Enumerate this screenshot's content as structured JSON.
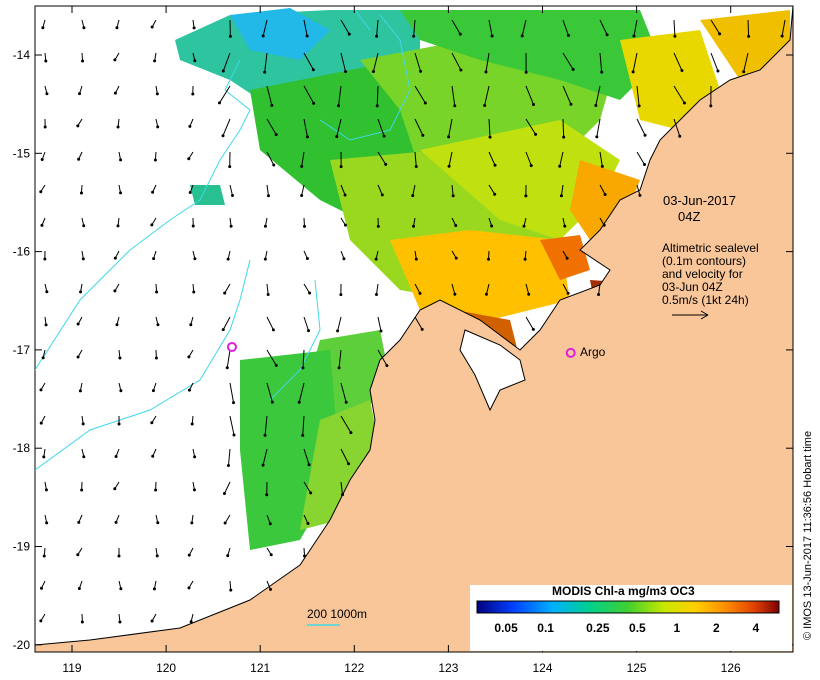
{
  "map": {
    "title_date": "03-Jun-2017",
    "title_time": "04Z",
    "altimetry_note": [
      "Altimetric sealevel",
      "(0.1m contours)",
      "and velocity for",
      "03-Jun 04Z",
      "0.5m/s (1kt 24h)"
    ],
    "argo_label": "Argo",
    "bathymetry_label": "200  1000m",
    "credit": "© IMOS 13-Jun-2017 11:36:56 Hobart time",
    "x_ticks": [
      "119",
      "120",
      "121",
      "122",
      "123",
      "124",
      "125",
      "126"
    ],
    "y_ticks": [
      "-14",
      "-15",
      "-16",
      "-17",
      "-18",
      "-19",
      "-20"
    ],
    "colorbar": {
      "label": "MODIS Chl-a mg/m3 OC3",
      "ticks": [
        "0.05",
        "0.1",
        "0.25",
        "0.5",
        "1",
        "2",
        "4"
      ]
    },
    "colors": {
      "land": "#f9c69a",
      "cloud": "#ffffff",
      "contour": "#40d8e8",
      "argo": "#e020e0"
    },
    "argo_floats": [
      {
        "lon": 120.7,
        "lat": -16.97
      },
      {
        "lon": 124.3,
        "lat": -17.03,
        "labeled": true
      }
    ]
  }
}
